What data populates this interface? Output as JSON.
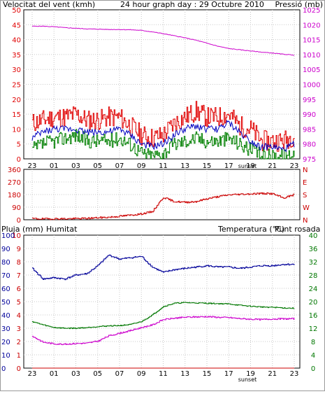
{
  "colors": {
    "wind_red": "#e00000",
    "wind_blue": "#0000c0",
    "wind_green": "#008000",
    "pressure": "#cc00cc",
    "direction": "#cc0000",
    "rain": "#cc0000",
    "humidity": "#000099",
    "temperature": "#007700",
    "dewpoint": "#cc00cc",
    "grid": "#c8c8c8"
  },
  "hour_ticks": [
    "23",
    "01",
    "03",
    "05",
    "07",
    "09",
    "11",
    "13",
    "15",
    "17",
    "19",
    "21",
    "23"
  ],
  "sunset_label": "sunset",
  "chart_data": [
    {
      "type": "line",
      "title": "24 hour graph day : 29 Octubre 2010",
      "ylabel": "Velocitat del vent (kmh)",
      "y2label": "Pressió (mb)",
      "ylim": [
        0,
        50
      ],
      "y2lim": [
        975,
        1025
      ],
      "yticks": [
        "0",
        "5",
        "10",
        "15",
        "20",
        "25",
        "30",
        "35",
        "40",
        "45",
        "50"
      ],
      "y2ticks": [
        "975",
        "980",
        "985",
        "990",
        "995",
        "1000",
        "1005",
        "1010",
        "1015",
        "1020",
        "1025"
      ],
      "hours": [
        0,
        1,
        2,
        3,
        4,
        5,
        6,
        7,
        8,
        9,
        10,
        11,
        12,
        13,
        14,
        15,
        16,
        17,
        18,
        19,
        20,
        21,
        22,
        23,
        24
      ],
      "series": [
        {
          "values": [
            12,
            13,
            14,
            14,
            15,
            13,
            13,
            14,
            14,
            11,
            8,
            7,
            8,
            12,
            14,
            16,
            14,
            14,
            15,
            11,
            10,
            6,
            6,
            6,
            8
          ]
        },
        {
          "values": [
            7,
            9,
            10,
            10,
            10,
            9,
            9,
            9,
            10,
            8,
            5,
            4,
            5,
            8,
            10,
            11,
            10,
            10,
            12,
            9,
            6,
            4,
            4,
            3,
            5
          ]
        },
        {
          "values": [
            3,
            5,
            6,
            7,
            8,
            6,
            6,
            6,
            7,
            5,
            2,
            1,
            2,
            5,
            6,
            7,
            6,
            6,
            7,
            5,
            3,
            1,
            1,
            1,
            2
          ]
        },
        {
          "axis": "y2",
          "values": [
            1019.5,
            1019.5,
            1019.3,
            1019,
            1018.8,
            1018.6,
            1018.5,
            1018.4,
            1018.4,
            1018.3,
            1018.1,
            1017.6,
            1017,
            1016.3,
            1015.6,
            1014.8,
            1013.8,
            1012.8,
            1012,
            1011.6,
            1011.2,
            1010.8,
            1010.5,
            1010.1,
            1009.8
          ]
        }
      ]
    },
    {
      "type": "line",
      "ylim": [
        0,
        360
      ],
      "yticks": [
        "0",
        "90",
        "180",
        "270",
        "360"
      ],
      "y2ticks": [
        "N",
        "W",
        "S",
        "E",
        "N"
      ],
      "hours": [
        0,
        1,
        2,
        3,
        4,
        5,
        6,
        7,
        8,
        9,
        10,
        11,
        12,
        13,
        14,
        15,
        16,
        17,
        18,
        19,
        20,
        21,
        22,
        23,
        24
      ],
      "series": [
        {
          "values": [
            8,
            6,
            7,
            7,
            8,
            10,
            14,
            18,
            25,
            33,
            42,
            58,
            160,
            130,
            125,
            130,
            150,
            165,
            178,
            182,
            185,
            188,
            186,
            155,
            180
          ]
        }
      ]
    },
    {
      "type": "line",
      "ylabel": "Pluja (mm)",
      "y3label": "Humitat",
      "y2label": "Temperatura (°C)",
      "y4label": "Punt rosada",
      "ylim": [
        0,
        10
      ],
      "y2lim": [
        0,
        40
      ],
      "yticks": [
        "0",
        "1",
        "2",
        "3",
        "4",
        "5",
        "6",
        "7",
        "8",
        "9",
        "10"
      ],
      "y3ticks": [
        "0",
        "10",
        "20",
        "30",
        "40",
        "50",
        "60",
        "70",
        "80",
        "90",
        "100"
      ],
      "y2ticks": [
        "0",
        "4",
        "8",
        "12",
        "16",
        "20",
        "24",
        "28",
        "32",
        "36",
        "40"
      ],
      "hours": [
        0,
        1,
        2,
        3,
        4,
        5,
        6,
        7,
        8,
        9,
        10,
        11,
        12,
        13,
        14,
        15,
        16,
        17,
        18,
        19,
        20,
        21,
        22,
        23,
        24
      ],
      "series": [
        {
          "values": [
            0,
            0,
            0,
            0,
            0,
            0,
            0,
            0,
            0,
            0,
            0,
            0,
            0,
            0,
            0,
            0,
            0,
            0,
            0,
            0,
            0,
            0,
            0,
            0,
            0
          ]
        },
        {
          "axis": "y3",
          "values": [
            75,
            67,
            68,
            67,
            70,
            71,
            77,
            85,
            82,
            83,
            84,
            76,
            72,
            74,
            75,
            76,
            77,
            76,
            76,
            75,
            76,
            77,
            77,
            78,
            78
          ]
        },
        {
          "axis": "y2",
          "values": [
            14,
            13,
            12.2,
            12,
            12,
            12.2,
            12.5,
            12.7,
            12.8,
            13.1,
            14,
            16,
            18.5,
            19.5,
            19.7,
            19.6,
            19.5,
            19.4,
            19.3,
            18.9,
            18.6,
            18.4,
            18.3,
            18.1,
            18
          ]
        },
        {
          "axis": "y2",
          "values": [
            9.6,
            7.8,
            7.3,
            7.2,
            7.4,
            7.5,
            8.1,
            9.7,
            10.5,
            11.3,
            12.2,
            13,
            14.6,
            15,
            15.3,
            15.4,
            15.5,
            15.3,
            15.2,
            14.9,
            14.7,
            14.6,
            14.8,
            14.8,
            14.9
          ]
        }
      ]
    }
  ]
}
